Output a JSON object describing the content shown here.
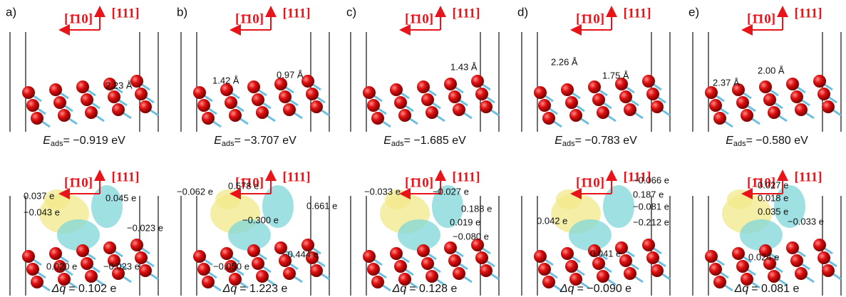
{
  "directions": {
    "left": "[1̄10]",
    "up": "[111]"
  },
  "energy_symbol": {
    "symbol": "E",
    "subscript": "ads"
  },
  "charge_symbol": "Δq",
  "panels": [
    {
      "label": "a)",
      "top": {
        "bonds": [
          "2.23 Å"
        ],
        "energy": "= −0.919 eV"
      },
      "bottom": {
        "charges": [
          "0.037 e",
          "0.045 e",
          "−0.043 e",
          "−0.023 e",
          "0.020 e",
          "−0.023 e"
        ],
        "dq": "= 0.102 e"
      }
    },
    {
      "label": "b)",
      "top": {
        "bonds": [
          "1.42 Å",
          "0.97 Å"
        ],
        "energy": "= −3.707 eV"
      },
      "bottom": {
        "charges": [
          "−0.062 e",
          "0.578 e",
          "0.661 e",
          "−0.300 e",
          "−0.444 e",
          "−0.050 e"
        ],
        "dq": "= 1.223 e"
      }
    },
    {
      "label": "c)",
      "top": {
        "bonds": [
          "1.43 Å"
        ],
        "energy": "= −1.685 eV"
      },
      "bottom": {
        "charges": [
          "−0.033 e",
          "−0.027 e",
          "0.188 e",
          "0.019 e",
          "−0.080 e"
        ],
        "dq": "= 0.128 e"
      }
    },
    {
      "label": "d)",
      "top": {
        "bonds": [
          "2.26 Å",
          "1.75 Å"
        ],
        "energy": "= −0.783 eV"
      },
      "bottom": {
        "charges": [
          "−0.066 e",
          "0.187 e",
          "−0.081 e",
          "0.042 e",
          "−0.212 e",
          "0.041 e"
        ],
        "dq": "= −0.090 e"
      }
    },
    {
      "label": "e)",
      "top": {
        "bonds": [
          "2.37 Å",
          "2.00 Å"
        ],
        "energy": "= −0.580 eV"
      },
      "bottom": {
        "charges": [
          "0.027 e",
          "0.018 e",
          "0.035 e",
          "−0.033 e",
          "0.024 e"
        ],
        "dq": "= 0.081 e"
      }
    }
  ]
}
